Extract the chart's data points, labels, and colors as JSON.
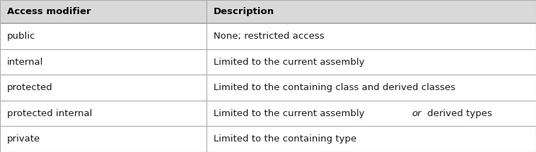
{
  "header": [
    "Access modifier",
    "Description"
  ],
  "rows": [
    [
      "public",
      "None; restricted access"
    ],
    [
      "internal",
      "Limited to the current assembly"
    ],
    [
      "protected",
      "Limited to the containing class and derived classes"
    ],
    [
      "protected internal",
      "Limited to the current assembly or derived types"
    ],
    [
      "private",
      "Limited to the containing type"
    ]
  ],
  "col_split": 0.385,
  "header_bg": "#d9d9d9",
  "row_bg": "#ffffff",
  "line_color": "#aaaaaa",
  "header_font_size": 9.5,
  "row_font_size": 9.5,
  "text_color": "#1a1a1a",
  "header_text_color": "#000000",
  "fig_bg": "#ffffff",
  "italic_row": 3,
  "italic_word": "or"
}
